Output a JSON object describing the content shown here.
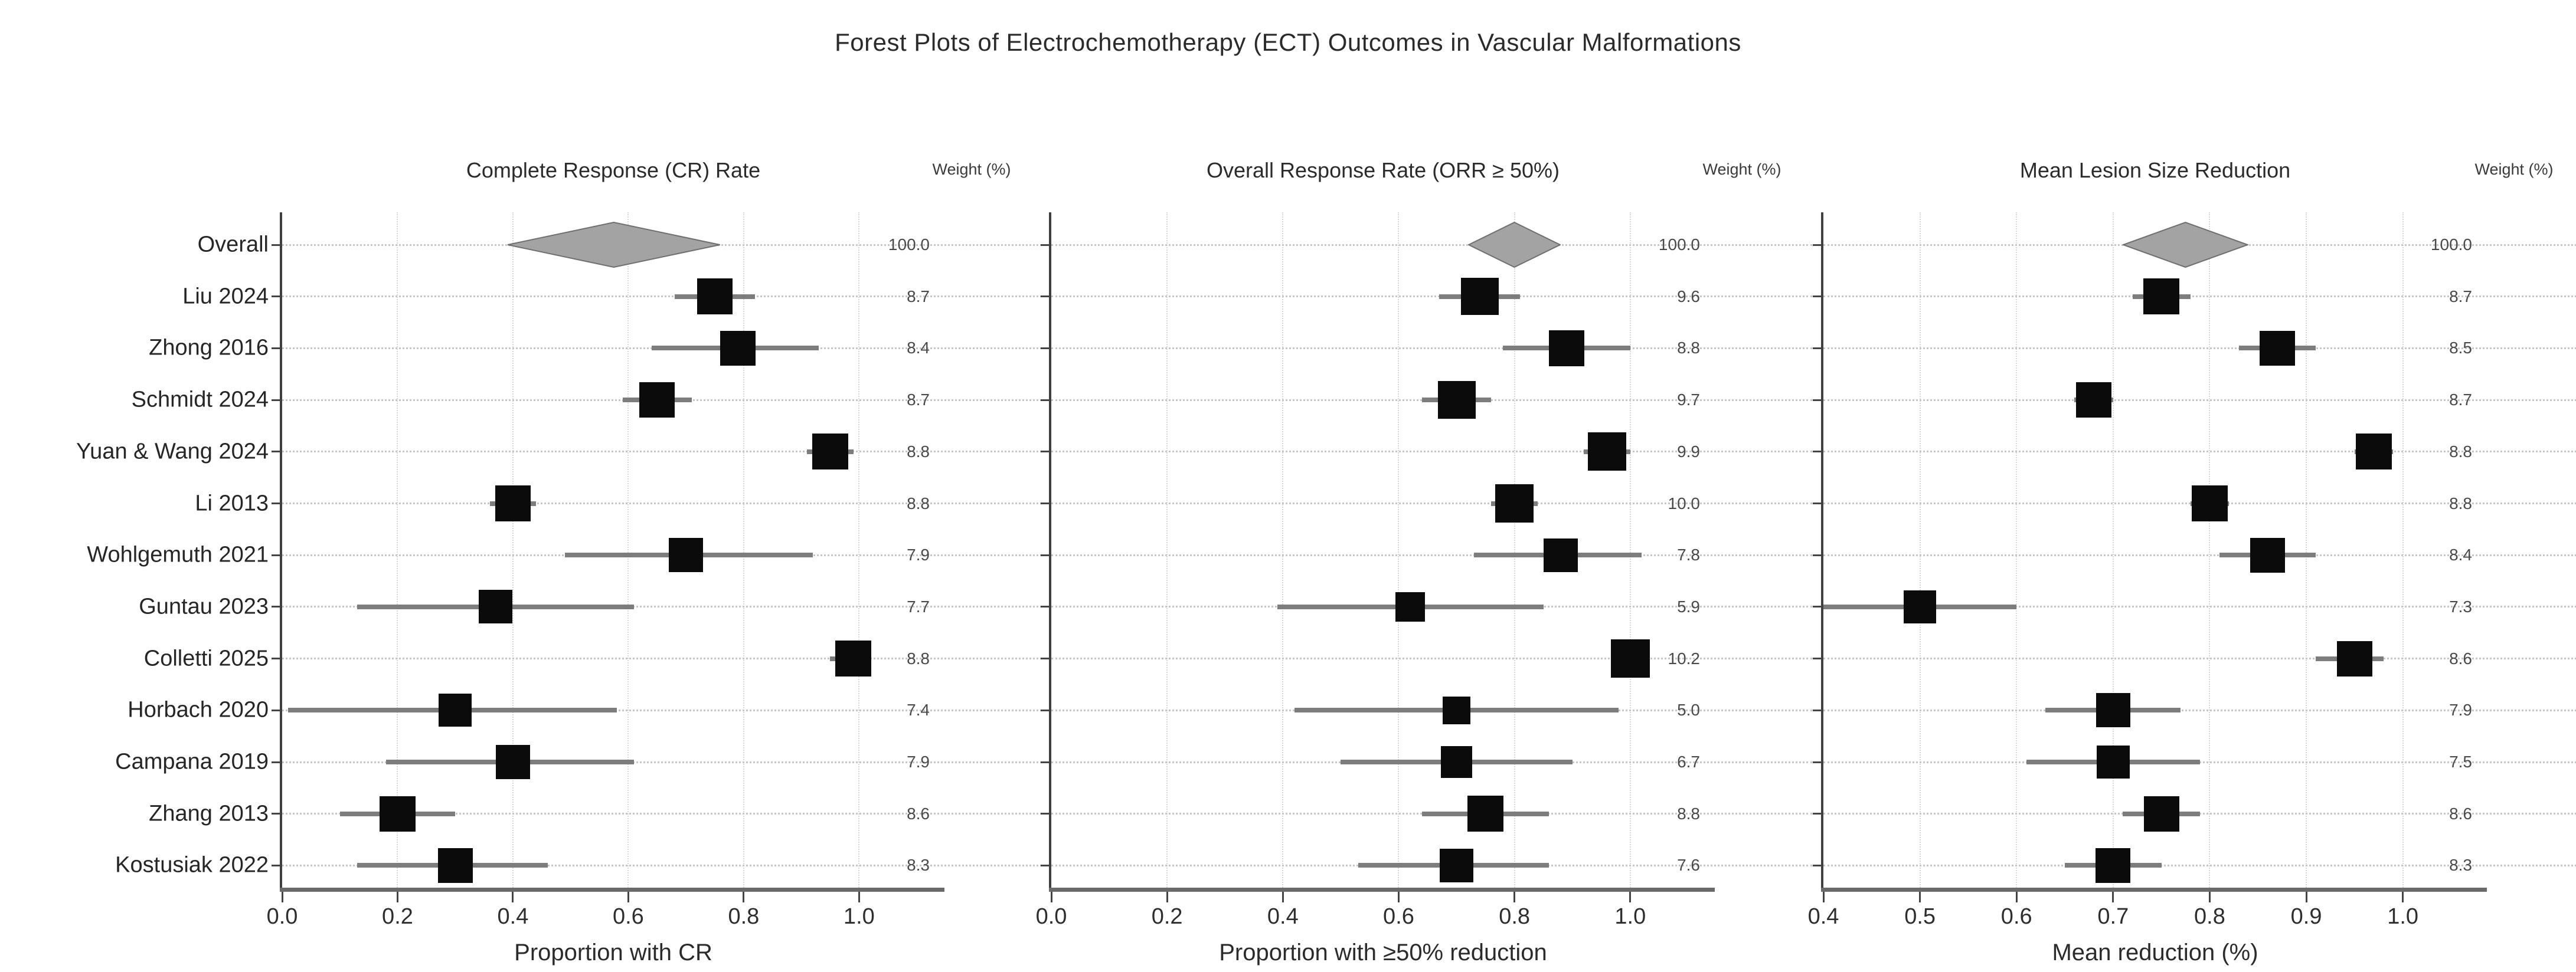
{
  "title": "Forest Plots of Electrochemotherapy (ECT) Outcomes in Vascular Malformations",
  "chart_data": [
    {
      "type": "forest",
      "title": "Complete Response (CR) Rate",
      "xlabel": "Proportion with CR",
      "weight_header": "Weight (%)",
      "xticks": [
        0.0,
        0.2,
        0.4,
        0.6,
        0.8,
        1.0
      ],
      "xlim": [
        0.0,
        1.148
      ],
      "grid": "dotted",
      "show_study_labels": true,
      "studies": [
        {
          "label": "Overall",
          "marker": "diamond",
          "est": 0.57,
          "lo": 0.39,
          "hi": 0.76,
          "weight": 100.0
        },
        {
          "label": "Liu 2024",
          "marker": "square",
          "est": 0.75,
          "lo": 0.68,
          "hi": 0.82,
          "weight": 8.7
        },
        {
          "label": "Zhong 2016",
          "marker": "square",
          "est": 0.79,
          "lo": 0.64,
          "hi": 0.93,
          "weight": 8.4
        },
        {
          "label": "Schmidt 2024",
          "marker": "square",
          "est": 0.65,
          "lo": 0.59,
          "hi": 0.71,
          "weight": 8.7
        },
        {
          "label": "Yuan & Wang 2024",
          "marker": "square",
          "est": 0.95,
          "lo": 0.91,
          "hi": 0.99,
          "weight": 8.8
        },
        {
          "label": "Li 2013",
          "marker": "square",
          "est": 0.4,
          "lo": 0.36,
          "hi": 0.44,
          "weight": 8.8
        },
        {
          "label": "Wohlgemuth 2021",
          "marker": "square",
          "est": 0.7,
          "lo": 0.49,
          "hi": 0.92,
          "weight": 7.9
        },
        {
          "label": "Guntau 2023",
          "marker": "square",
          "est": 0.37,
          "lo": 0.13,
          "hi": 0.61,
          "weight": 7.7
        },
        {
          "label": "Colletti 2025",
          "marker": "square",
          "est": 0.99,
          "lo": 0.95,
          "hi": 1.02,
          "weight": 8.8
        },
        {
          "label": "Horbach 2020",
          "marker": "square",
          "est": 0.3,
          "lo": 0.01,
          "hi": 0.58,
          "weight": 7.4
        },
        {
          "label": "Campana 2019",
          "marker": "square",
          "est": 0.4,
          "lo": 0.18,
          "hi": 0.61,
          "weight": 7.9
        },
        {
          "label": "Zhang 2013",
          "marker": "square",
          "est": 0.2,
          "lo": 0.1,
          "hi": 0.3,
          "weight": 8.6
        },
        {
          "label": "Kostusiak 2022",
          "marker": "square",
          "est": 0.3,
          "lo": 0.13,
          "hi": 0.46,
          "weight": 8.3
        }
      ]
    },
    {
      "type": "forest",
      "title": "Overall Response Rate (ORR ≥ 50%)",
      "xlabel": "Proportion with ≥50% reduction",
      "weight_header": "Weight (%)",
      "xticks": [
        0.0,
        0.2,
        0.4,
        0.6,
        0.8,
        1.0
      ],
      "xlim": [
        0.0,
        1.146
      ],
      "grid": "dotted",
      "show_study_labels": false,
      "studies": [
        {
          "label": "Overall",
          "marker": "diamond",
          "est": 0.8,
          "lo": 0.72,
          "hi": 0.88,
          "weight": 100.0
        },
        {
          "label": "Liu 2024",
          "marker": "square",
          "est": 0.74,
          "lo": 0.67,
          "hi": 0.81,
          "weight": 9.6
        },
        {
          "label": "Zhong 2016",
          "marker": "square",
          "est": 0.89,
          "lo": 0.78,
          "hi": 1.0,
          "weight": 8.8
        },
        {
          "label": "Schmidt 2024",
          "marker": "square",
          "est": 0.7,
          "lo": 0.64,
          "hi": 0.76,
          "weight": 9.7
        },
        {
          "label": "Yuan & Wang 2024",
          "marker": "square",
          "est": 0.96,
          "lo": 0.92,
          "hi": 1.0,
          "weight": 9.9
        },
        {
          "label": "Li 2013",
          "marker": "square",
          "est": 0.8,
          "lo": 0.76,
          "hi": 0.84,
          "weight": 10.0
        },
        {
          "label": "Wohlgemuth 2021",
          "marker": "square",
          "est": 0.88,
          "lo": 0.73,
          "hi": 1.02,
          "weight": 7.8
        },
        {
          "label": "Guntau 2023",
          "marker": "square",
          "est": 0.62,
          "lo": 0.39,
          "hi": 0.85,
          "weight": 5.9
        },
        {
          "label": "Colletti 2025",
          "marker": "square",
          "est": 1.0,
          "lo": 0.97,
          "hi": 1.02,
          "weight": 10.2
        },
        {
          "label": "Horbach 2020",
          "marker": "square",
          "est": 0.7,
          "lo": 0.42,
          "hi": 0.98,
          "weight": 5.0
        },
        {
          "label": "Campana 2019",
          "marker": "square",
          "est": 0.7,
          "lo": 0.5,
          "hi": 0.9,
          "weight": 6.7
        },
        {
          "label": "Zhang 2013",
          "marker": "square",
          "est": 0.75,
          "lo": 0.64,
          "hi": 0.86,
          "weight": 8.8
        },
        {
          "label": "Kostusiak 2022",
          "marker": "square",
          "est": 0.7,
          "lo": 0.53,
          "hi": 0.86,
          "weight": 7.6
        }
      ]
    },
    {
      "type": "forest",
      "title": "Mean Lesion Size Reduction",
      "xlabel": "Mean reduction (%)",
      "weight_header": "Weight (%)",
      "xticks": [
        0.4,
        0.5,
        0.6,
        0.7,
        0.8,
        0.9,
        1.0
      ],
      "xlim": [
        0.4,
        1.087
      ],
      "grid": "dotted",
      "show_study_labels": false,
      "studies": [
        {
          "label": "Overall",
          "marker": "diamond",
          "est": 0.77,
          "lo": 0.71,
          "hi": 0.84,
          "weight": 100.0
        },
        {
          "label": "Liu 2024",
          "marker": "square",
          "est": 0.75,
          "lo": 0.72,
          "hi": 0.78,
          "weight": 8.7
        },
        {
          "label": "Zhong 2016",
          "marker": "square",
          "est": 0.87,
          "lo": 0.83,
          "hi": 0.91,
          "weight": 8.5
        },
        {
          "label": "Schmidt 2024",
          "marker": "square",
          "est": 0.68,
          "lo": 0.66,
          "hi": 0.7,
          "weight": 8.7
        },
        {
          "label": "Yuan & Wang 2024",
          "marker": "square",
          "est": 0.97,
          "lo": 0.95,
          "hi": 0.99,
          "weight": 8.8
        },
        {
          "label": "Li 2013",
          "marker": "square",
          "est": 0.8,
          "lo": 0.78,
          "hi": 0.82,
          "weight": 8.8
        },
        {
          "label": "Wohlgemuth 2021",
          "marker": "square",
          "est": 0.86,
          "lo": 0.81,
          "hi": 0.91,
          "weight": 8.4
        },
        {
          "label": "Guntau 2023",
          "marker": "square",
          "est": 0.5,
          "lo": 0.4,
          "hi": 0.6,
          "weight": 7.3
        },
        {
          "label": "Colletti 2025",
          "marker": "square",
          "est": 0.95,
          "lo": 0.91,
          "hi": 0.98,
          "weight": 8.6
        },
        {
          "label": "Horbach 2020",
          "marker": "square",
          "est": 0.7,
          "lo": 0.63,
          "hi": 0.77,
          "weight": 7.9
        },
        {
          "label": "Campana 2019",
          "marker": "square",
          "est": 0.7,
          "lo": 0.61,
          "hi": 0.79,
          "weight": 7.5
        },
        {
          "label": "Zhang 2013",
          "marker": "square",
          "est": 0.75,
          "lo": 0.71,
          "hi": 0.79,
          "weight": 8.6
        },
        {
          "label": "Kostusiak 2022",
          "marker": "square",
          "est": 0.7,
          "lo": 0.65,
          "hi": 0.75,
          "weight": 8.3
        }
      ]
    }
  ],
  "colors": {
    "marker": "#0b0b0b",
    "ci_line": "#7d7d7d",
    "diamond_fill": "#a3a3a3",
    "diamond_stroke": "#6f6f6f",
    "grid": "#d8d8d8",
    "row_dots": "#c6c6c6",
    "text": "#262626"
  }
}
